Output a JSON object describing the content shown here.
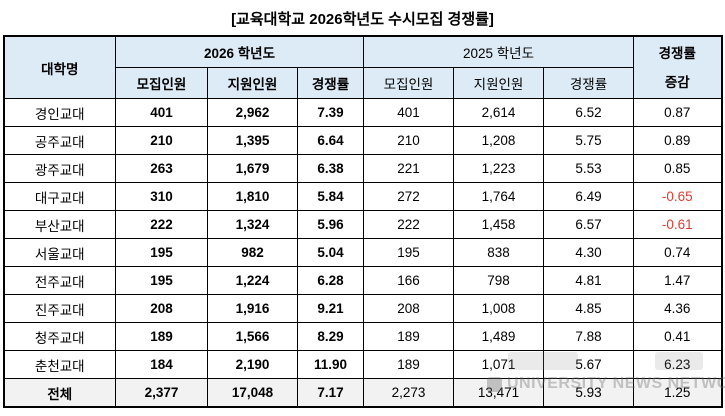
{
  "title": "[교육대학교 2026학년도 수시모집 경쟁률]",
  "colors": {
    "header_bg": "#ddebf7",
    "total_row_bg": "#f2f2f2",
    "negative_value": "#e23b2e",
    "border": "#000000",
    "watermark_gray": "#6e6e6e"
  },
  "table": {
    "corner_header": "대학명",
    "group_headers": {
      "y2026": "2026 학년도",
      "y2025": "2025 학년도"
    },
    "sub_headers": {
      "recruit": "모집인원",
      "applicants": "지원인원",
      "ratio": "경쟁률"
    },
    "change_header": {
      "line1": "경쟁률",
      "line2": "증감"
    },
    "rows": [
      [
        "경인교대",
        "401",
        "2,962",
        "7.39",
        "401",
        "2,614",
        "6.52",
        "0.87"
      ],
      [
        "공주교대",
        "210",
        "1,395",
        "6.64",
        "210",
        "1,208",
        "5.75",
        "0.89"
      ],
      [
        "광주교대",
        "263",
        "1,679",
        "6.38",
        "221",
        "1,223",
        "5.53",
        "0.85"
      ],
      [
        "대구교대",
        "310",
        "1,810",
        "5.84",
        "272",
        "1,764",
        "6.49",
        "-0.65"
      ],
      [
        "부산교대",
        "222",
        "1,324",
        "5.96",
        "222",
        "1,458",
        "6.57",
        "-0.61"
      ],
      [
        "서울교대",
        "195",
        "982",
        "5.04",
        "195",
        "838",
        "4.30",
        "0.74"
      ],
      [
        "전주교대",
        "195",
        "1,224",
        "6.28",
        "166",
        "798",
        "4.81",
        "1.47"
      ],
      [
        "진주교대",
        "208",
        "1,916",
        "9.21",
        "208",
        "1,008",
        "4.85",
        "4.36"
      ],
      [
        "청주교대",
        "189",
        "1,566",
        "8.29",
        "189",
        "1,489",
        "7.88",
        "0.41"
      ],
      [
        "춘천교대",
        "184",
        "2,190",
        "11.90",
        "189",
        "1,071",
        "5.67",
        "6.23"
      ]
    ],
    "total_row": [
      "전체",
      "2,377",
      "17,048",
      "7.17",
      "2,273",
      "13,471",
      "5.93",
      "1.25"
    ]
  },
  "watermark": {
    "text": "UNIVERSITY NEWS NETWORK"
  },
  "chart_data": {
    "type": "table",
    "title": "[교육대학교 2026학년도 수시모집 경쟁률]",
    "columns": [
      "대학명",
      "2026 모집인원",
      "2026 지원인원",
      "2026 경쟁률",
      "2025 모집인원",
      "2025 지원인원",
      "2025 경쟁률",
      "경쟁률 증감"
    ],
    "rows": [
      [
        "경인교대",
        401,
        2962,
        7.39,
        401,
        2614,
        6.52,
        0.87
      ],
      [
        "공주교대",
        210,
        1395,
        6.64,
        210,
        1208,
        5.75,
        0.89
      ],
      [
        "광주교대",
        263,
        1679,
        6.38,
        221,
        1223,
        5.53,
        0.85
      ],
      [
        "대구교대",
        310,
        1810,
        5.84,
        272,
        1764,
        6.49,
        -0.65
      ],
      [
        "부산교대",
        222,
        1324,
        5.96,
        222,
        1458,
        6.57,
        -0.61
      ],
      [
        "서울교대",
        195,
        982,
        5.04,
        195,
        838,
        4.3,
        0.74
      ],
      [
        "전주교대",
        195,
        1224,
        6.28,
        166,
        798,
        4.81,
        1.47
      ],
      [
        "진주교대",
        208,
        1916,
        9.21,
        208,
        1008,
        4.85,
        4.36
      ],
      [
        "청주교대",
        189,
        1566,
        8.29,
        189,
        1489,
        7.88,
        0.41
      ],
      [
        "춘천교대",
        184,
        2190,
        11.9,
        189,
        1071,
        5.67,
        6.23
      ],
      [
        "전체",
        2377,
        17048,
        7.17,
        2273,
        13471,
        5.93,
        1.25
      ]
    ]
  }
}
